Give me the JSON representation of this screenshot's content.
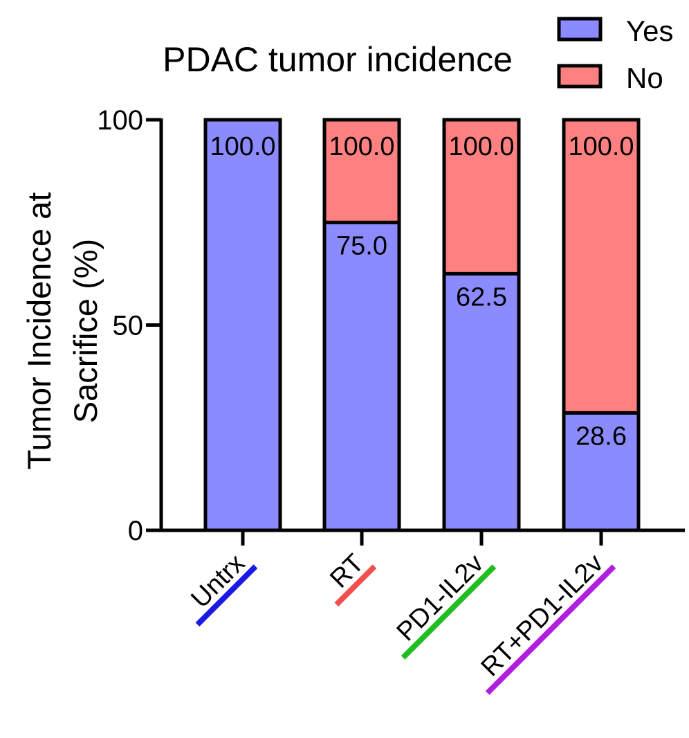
{
  "chart_data": {
    "type": "bar",
    "stacked": true,
    "title": "PDAC tumor incidence",
    "ylabel_lines": [
      "Tumor Incidence at",
      "Sacrifice (%)"
    ],
    "xlabel": "",
    "ylim": [
      0,
      100
    ],
    "yticks": [
      0,
      50,
      100
    ],
    "categories": [
      "Untrx",
      "RT",
      "PD1-IL2v",
      "RT+PD1-IL2v"
    ],
    "category_underline_colors": [
      "#1a1ae6",
      "#f05050",
      "#1fbf1f",
      "#b01ee0"
    ],
    "series": [
      {
        "name": "Yes",
        "color": "#8b8bff",
        "values": [
          100.0,
          75.0,
          62.5,
          28.6
        ]
      },
      {
        "name": "No",
        "color": "#ff8080",
        "values": [
          0.0,
          25.0,
          37.5,
          71.4
        ]
      }
    ],
    "data_labels": {
      "segment": [
        "",
        "75.0",
        "62.5",
        "28.6"
      ],
      "top": [
        "100.0",
        "100.0",
        "100.0",
        "100.0"
      ]
    },
    "legend_position": "top-right",
    "grid": false
  }
}
